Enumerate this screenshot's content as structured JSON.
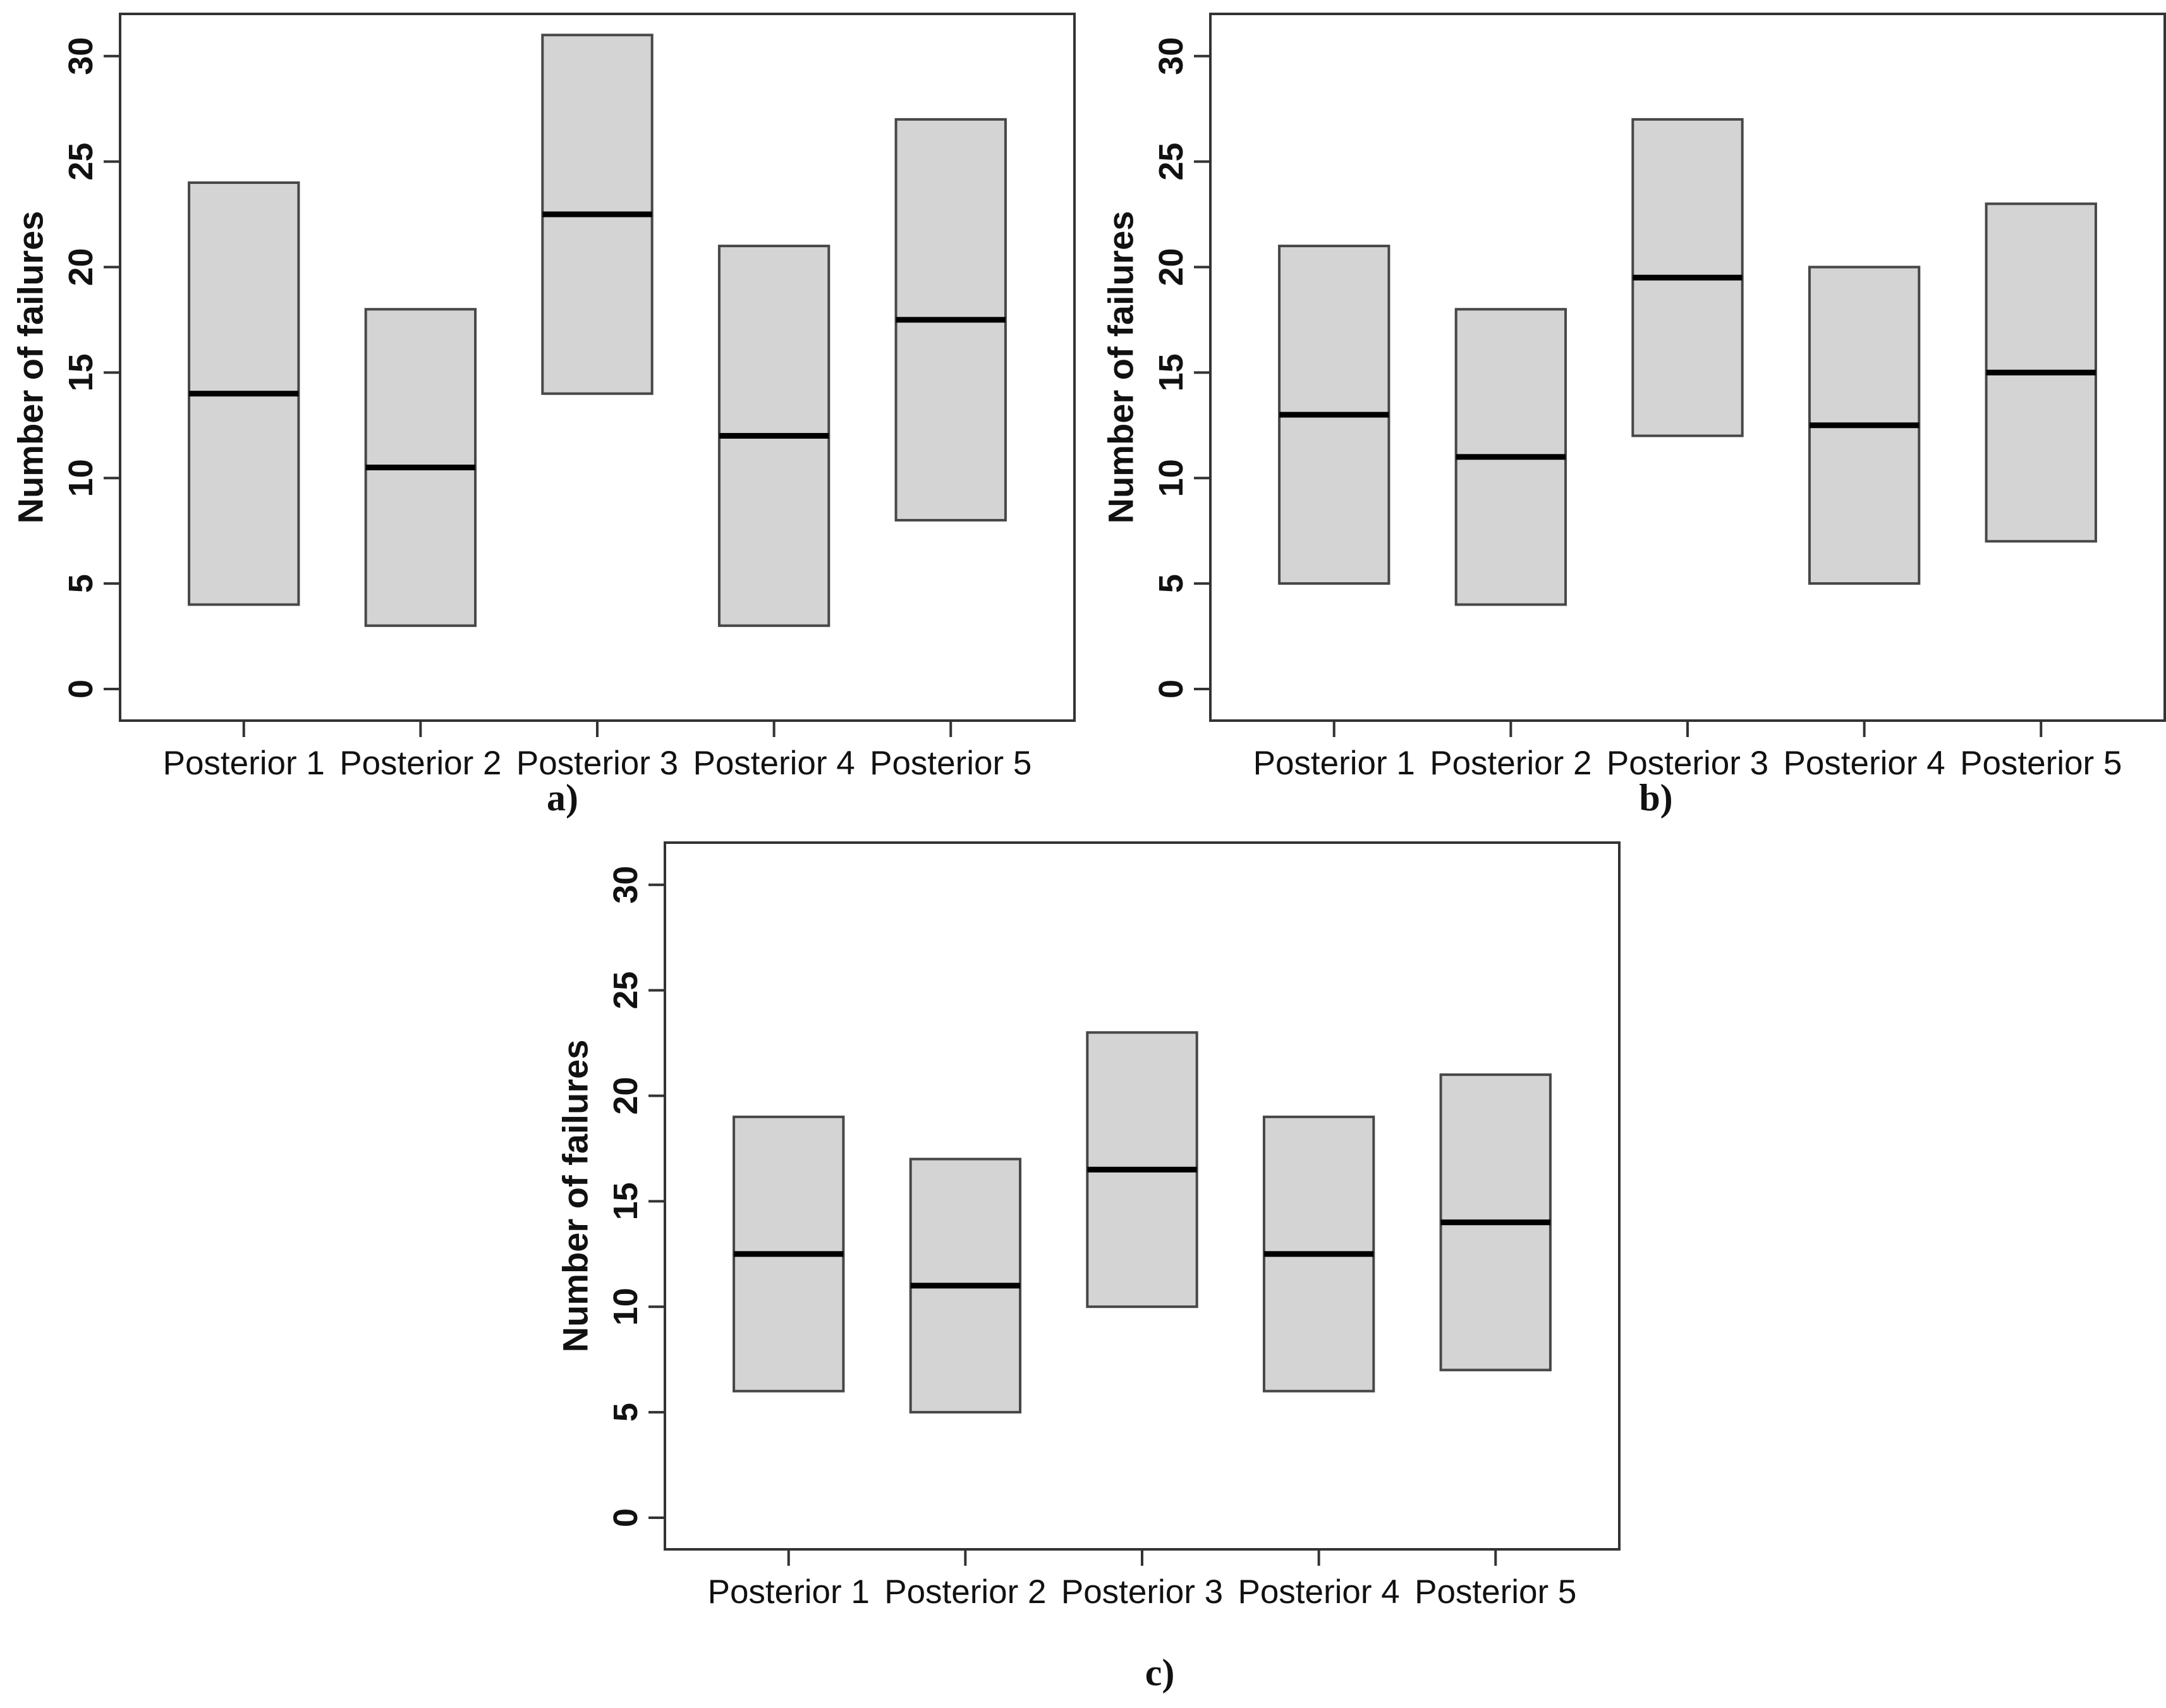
{
  "figure": {
    "background": "#ffffff"
  },
  "colors": {
    "box_fill": "#d4d4d4",
    "box_border": "#474747",
    "median_line": "#000000",
    "axis_line": "#333333",
    "text": "#111111"
  },
  "chart_data": [
    {
      "id": "a",
      "type": "boxplot",
      "panel_label": "a)",
      "ylabel": "Number of failures",
      "yticks": [
        0,
        5,
        10,
        15,
        20,
        25,
        30
      ],
      "ylim": [
        -1.5,
        32
      ],
      "grid": false,
      "categories": [
        "Posterior 1",
        "Posterior 2",
        "Posterior 3",
        "Posterior 4",
        "Posterior 5"
      ],
      "boxes": [
        {
          "lower": 4,
          "median": 14,
          "upper": 24
        },
        {
          "lower": 3,
          "median": 10.5,
          "upper": 18
        },
        {
          "lower": 14,
          "median": 22.5,
          "upper": 31
        },
        {
          "lower": 3,
          "median": 12,
          "upper": 21
        },
        {
          "lower": 8,
          "median": 17.5,
          "upper": 27
        }
      ]
    },
    {
      "id": "b",
      "type": "boxplot",
      "panel_label": "b)",
      "ylabel": "Number of failures",
      "yticks": [
        0,
        5,
        10,
        15,
        20,
        25,
        30
      ],
      "ylim": [
        -1.5,
        32
      ],
      "grid": false,
      "categories": [
        "Posterior 1",
        "Posterior 2",
        "Posterior 3",
        "Posterior 4",
        "Posterior 5"
      ],
      "boxes": [
        {
          "lower": 5,
          "median": 13,
          "upper": 21
        },
        {
          "lower": 4,
          "median": 11,
          "upper": 18
        },
        {
          "lower": 12,
          "median": 19.5,
          "upper": 27
        },
        {
          "lower": 5,
          "median": 12.5,
          "upper": 20
        },
        {
          "lower": 7,
          "median": 15,
          "upper": 23
        }
      ]
    },
    {
      "id": "c",
      "type": "boxplot",
      "panel_label": "c)",
      "ylabel": "Number of failures",
      "yticks": [
        0,
        5,
        10,
        15,
        20,
        25,
        30
      ],
      "ylim": [
        -1.5,
        32
      ],
      "grid": false,
      "categories": [
        "Posterior 1",
        "Posterior 2",
        "Posterior 3",
        "Posterior 4",
        "Posterior 5"
      ],
      "boxes": [
        {
          "lower": 6,
          "median": 12.5,
          "upper": 19
        },
        {
          "lower": 5,
          "median": 11,
          "upper": 17
        },
        {
          "lower": 10,
          "median": 16.5,
          "upper": 23
        },
        {
          "lower": 6,
          "median": 12.5,
          "upper": 19
        },
        {
          "lower": 7,
          "median": 14,
          "upper": 21
        }
      ]
    }
  ]
}
